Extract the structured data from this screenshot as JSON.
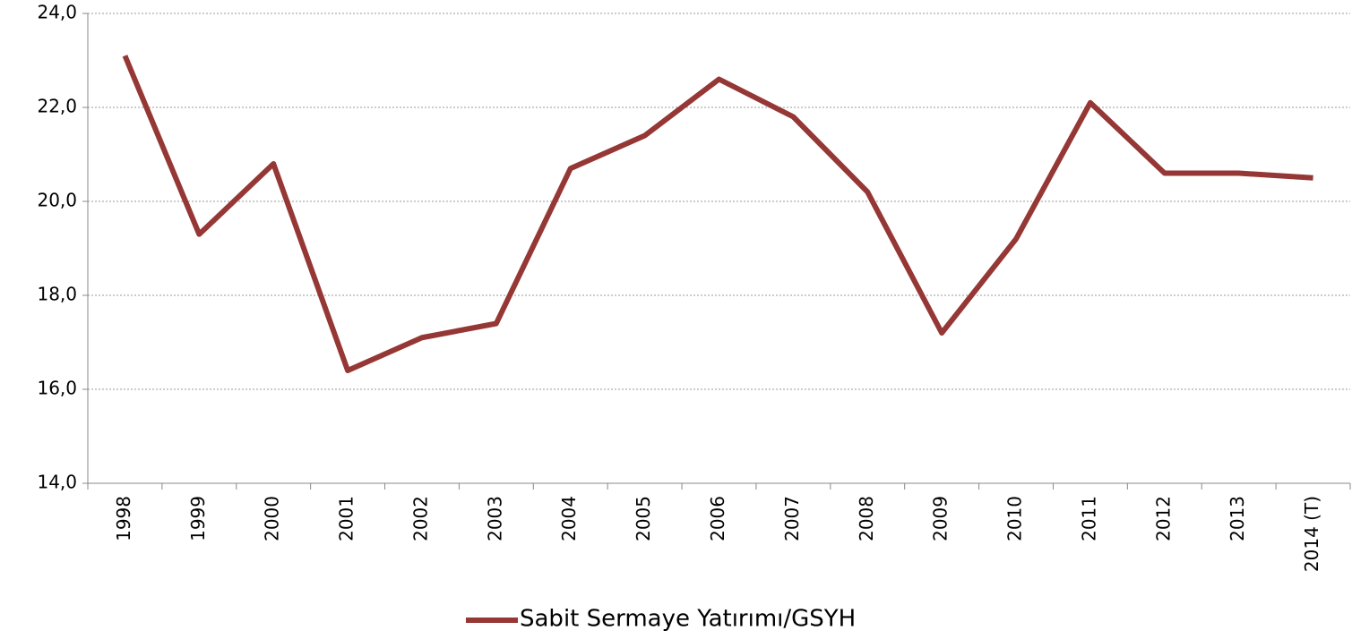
{
  "chart_data": {
    "type": "line",
    "categories": [
      "1998",
      "1999",
      "2000",
      "2001",
      "2002",
      "2003",
      "2004",
      "2005",
      "2006",
      "2007",
      "2008",
      "2009",
      "2010",
      "2011",
      "2012",
      "2013",
      "2014 (T)"
    ],
    "series": [
      {
        "name": "Sabit Sermaye Yatırımı/GSYH",
        "color": "#953735",
        "values": [
          23.1,
          19.3,
          20.8,
          16.4,
          17.1,
          17.4,
          20.7,
          21.4,
          22.6,
          21.8,
          20.2,
          17.2,
          19.2,
          22.1,
          20.6,
          20.6,
          20.5
        ]
      }
    ],
    "ylim": [
      14,
      24
    ],
    "yticks": [
      {
        "value": 14,
        "label": "14,0"
      },
      {
        "value": 16,
        "label": "16,0"
      },
      {
        "value": 18,
        "label": "18,0"
      },
      {
        "value": 20,
        "label": "20,0"
      },
      {
        "value": 22,
        "label": "22,0"
      },
      {
        "value": 24,
        "label": "24,0"
      }
    ],
    "grid": true,
    "legend": "bottom"
  }
}
